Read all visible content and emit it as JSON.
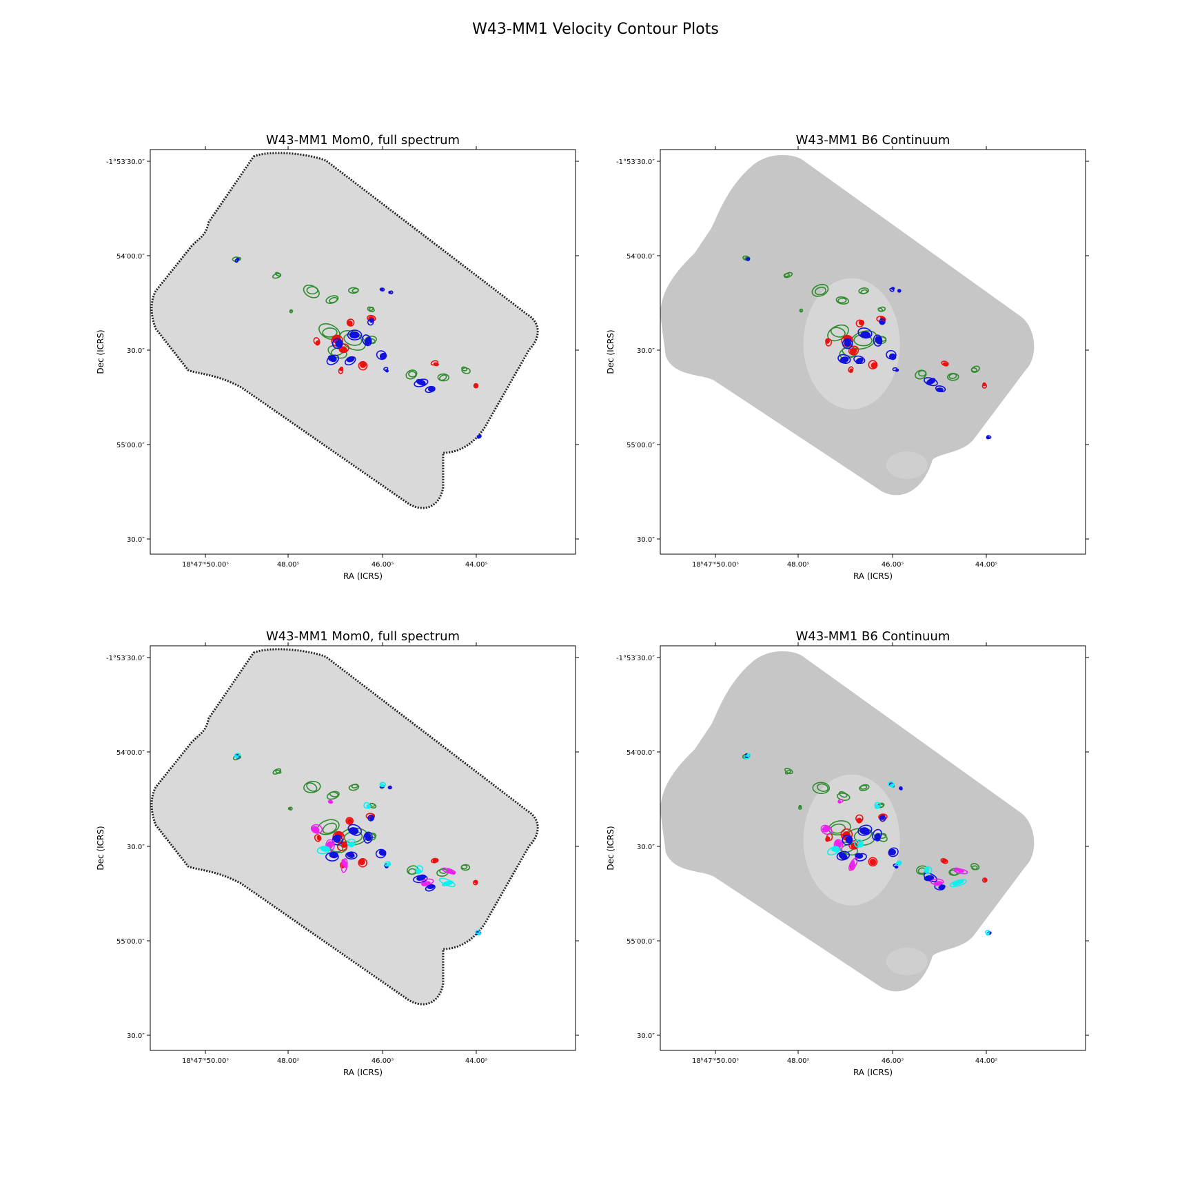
{
  "title": "W43-MM1 Velocity Contour Plots",
  "colors": {
    "green": "#2e8b2e",
    "red": "#ee1111",
    "blue": "#1111dd",
    "magenta": "#ee22ee",
    "cyan": "#11eeee"
  },
  "chart_data": [
    {
      "type": "image",
      "position": "top-left",
      "title": "W43-MM1 Mom0, full spectrum",
      "xlabel": "RA (ICRS)",
      "ylabel": "Dec (ICRS)",
      "xticks": [
        "18ʰ47ᵐ50.00ˢ",
        "48.00ˢ",
        "46.00ˢ",
        "44.00ˢ"
      ],
      "yticks": [
        "-1°53′30.0″",
        "54′00.0″",
        "30.0″",
        "55′00.0″",
        "30.0″"
      ],
      "background": "mom0",
      "contour_colors": [
        "green",
        "red",
        "blue"
      ]
    },
    {
      "type": "image",
      "position": "top-right",
      "title": "W43-MM1 B6 Continuum",
      "xlabel": "RA (ICRS)",
      "ylabel": "Dec (ICRS)",
      "xticks": [
        "18ʰ47ᵐ50.00ˢ",
        "48.00ˢ",
        "46.00ˢ",
        "44.00ˢ"
      ],
      "yticks": [
        "-1°53′30.0″",
        "54′00.0″",
        "30.0″",
        "55′00.0″",
        "30.0″"
      ],
      "background": "continuum",
      "contour_colors": [
        "green",
        "red",
        "blue"
      ]
    },
    {
      "type": "image",
      "position": "bottom-left",
      "title": "W43-MM1 Mom0, full spectrum",
      "xlabel": "RA (ICRS)",
      "ylabel": "Dec (ICRS)",
      "xticks": [
        "18ʰ47ᵐ50.00ˢ",
        "48.00ˢ",
        "46.00ˢ",
        "44.00ˢ"
      ],
      "yticks": [
        "-1°53′30.0″",
        "54′00.0″",
        "30.0″",
        "55′00.0″",
        "30.0″"
      ],
      "background": "mom0",
      "contour_colors": [
        "green",
        "red",
        "blue",
        "magenta",
        "cyan"
      ]
    },
    {
      "type": "image",
      "position": "bottom-right",
      "title": "W43-MM1 B6 Continuum",
      "xlabel": "RA (ICRS)",
      "ylabel": "Dec (ICRS)",
      "xticks": [
        "18ʰ47ᵐ50.00ˢ",
        "48.00ˢ",
        "46.00ˢ",
        "44.00ˢ"
      ],
      "yticks": [
        "-1°53′30.0″",
        "54′00.0″",
        "30.0″",
        "55′00.0″",
        "30.0″"
      ],
      "background": "continuum",
      "contour_colors": [
        "green",
        "red",
        "blue",
        "magenta",
        "cyan"
      ]
    }
  ]
}
